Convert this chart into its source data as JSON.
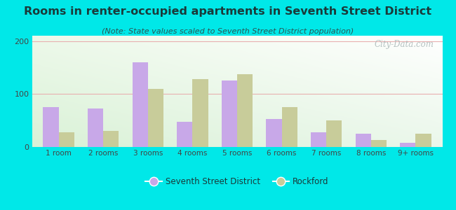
{
  "title": "Rooms in renter-occupied apartments in Seventh Street District",
  "subtitle": "(Note: State values scaled to Seventh Street District population)",
  "categories": [
    "1 room",
    "2 rooms",
    "3 rooms",
    "4 rooms",
    "5 rooms",
    "6 rooms",
    "7 rooms",
    "8 rooms",
    "9+ rooms"
  ],
  "seventh_street": [
    75,
    72,
    160,
    48,
    125,
    53,
    28,
    25,
    8
  ],
  "rockford": [
    28,
    30,
    110,
    128,
    138,
    75,
    50,
    13,
    25
  ],
  "color_seventh": "#c8a8e8",
  "color_rockford": "#c8cc9a",
  "background_outer": "#00e8e8",
  "ylim": [
    0,
    210
  ],
  "yticks": [
    0,
    100,
    200
  ],
  "bar_width": 0.35,
  "watermark": "City-Data.com",
  "legend_label_seventh": "Seventh Street District",
  "legend_label_rockford": "Rockford",
  "title_color": "#1a3a3a",
  "subtitle_color": "#2a5555",
  "tick_color": "#444444"
}
